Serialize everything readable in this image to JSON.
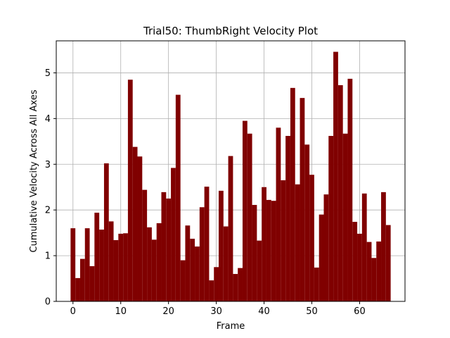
{
  "chart_data": {
    "type": "bar",
    "title": "Trial50: ThumbRight Velocity Plot",
    "xlabel": "Frame",
    "ylabel": "Cumulative Velocity Across All Axes",
    "xlim": [
      -3.5,
      69.5
    ],
    "ylim": [
      0,
      5.7
    ],
    "grid": true,
    "bar_color": "#800000",
    "x": [
      0,
      1,
      2,
      3,
      4,
      5,
      6,
      7,
      8,
      9,
      10,
      11,
      12,
      13,
      14,
      15,
      16,
      17,
      18,
      19,
      20,
      21,
      22,
      23,
      24,
      25,
      26,
      27,
      28,
      29,
      30,
      31,
      32,
      33,
      34,
      35,
      36,
      37,
      38,
      39,
      40,
      41,
      42,
      43,
      44,
      45,
      46,
      47,
      48,
      49,
      50,
      51,
      52,
      53,
      54,
      55,
      56,
      57,
      58,
      59,
      60,
      61,
      62,
      63,
      64,
      65,
      66
    ],
    "values": [
      1.6,
      0.51,
      0.93,
      1.6,
      0.77,
      1.94,
      1.57,
      3.02,
      1.75,
      1.34,
      1.48,
      1.49,
      4.85,
      3.38,
      3.17,
      2.44,
      1.62,
      1.35,
      1.71,
      2.39,
      2.25,
      2.92,
      4.52,
      0.9,
      1.66,
      1.37,
      1.2,
      2.06,
      2.51,
      0.46,
      0.75,
      2.42,
      1.64,
      3.18,
      0.6,
      0.73,
      3.95,
      3.67,
      2.11,
      1.33,
      2.5,
      2.22,
      2.2,
      3.8,
      2.65,
      3.62,
      4.67,
      2.56,
      4.45,
      3.43,
      2.77,
      0.74,
      1.9,
      2.34,
      3.62,
      5.46,
      4.73,
      3.67,
      4.87,
      1.74,
      1.48,
      2.36,
      1.3,
      0.95,
      1.31,
      2.39,
      1.67
    ],
    "x_ticks": [
      0,
      10,
      20,
      30,
      40,
      50,
      60
    ],
    "x_tick_labels": [
      "0",
      "10",
      "20",
      "30",
      "40",
      "50",
      "60"
    ],
    "y_ticks": [
      0,
      1,
      2,
      3,
      4,
      5
    ],
    "y_tick_labels": [
      "0",
      "1",
      "2",
      "3",
      "4",
      "5"
    ]
  }
}
